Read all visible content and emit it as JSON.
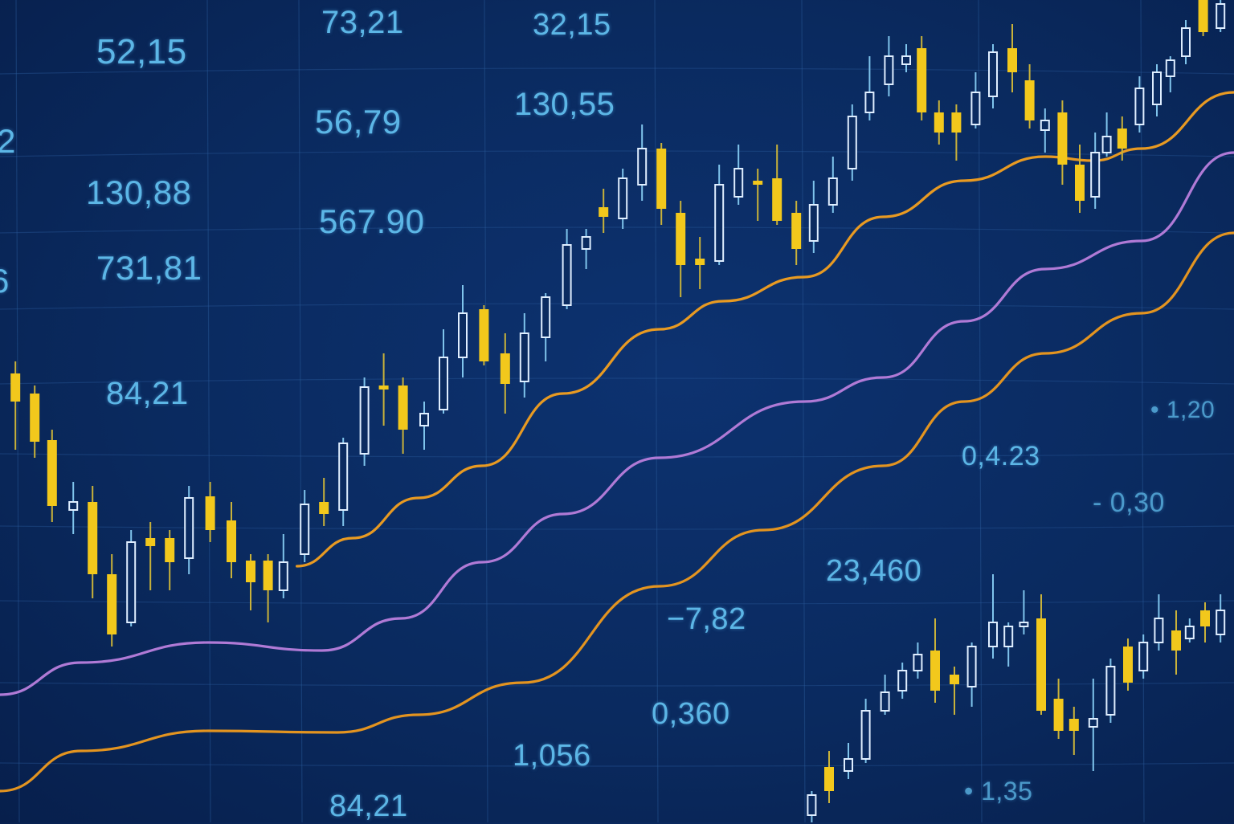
{
  "chart_data": {
    "type": "candlestick",
    "title": "",
    "xlabel": "",
    "ylabel": "",
    "xlim": [
      0,
      64
    ],
    "ylim": [
      0,
      102.4
    ],
    "grid": true,
    "colors": {
      "background": "#0a2a5f",
      "grid": "#2a5a9a",
      "up_candle": "#dfeeff",
      "down_candle": "#f2c81c",
      "ma_fast": "#e89a22",
      "ma_mid": "#b07ad6",
      "ma_slow": "#e39420",
      "label_text": "#5cb6e6"
    },
    "candle_format": [
      "t",
      "open",
      "high",
      "low",
      "close"
    ],
    "series": [
      {
        "kind": "candles",
        "candles": [
          [
            0.8,
            55.9,
            57.4,
            46.4,
            52.4
          ],
          [
            1.8,
            53.4,
            54.4,
            45.4,
            47.4
          ],
          [
            2.7,
            47.6,
            48.9,
            37.4,
            39.4
          ],
          [
            3.8,
            38.9,
            42.4,
            35.9,
            39.9
          ],
          [
            4.8,
            39.9,
            41.9,
            27.9,
            30.9
          ],
          [
            5.8,
            30.9,
            33.4,
            21.9,
            23.4
          ],
          [
            6.8,
            24.9,
            36.4,
            24.4,
            34.9
          ],
          [
            7.8,
            35.4,
            37.4,
            28.9,
            34.4
          ],
          [
            8.8,
            35.4,
            36.4,
            28.9,
            32.4
          ],
          [
            9.8,
            32.9,
            41.9,
            30.9,
            40.4
          ],
          [
            10.9,
            40.6,
            42.4,
            34.9,
            36.4
          ],
          [
            12.0,
            37.6,
            39.9,
            30.4,
            32.4
          ],
          [
            13.0,
            32.6,
            33.4,
            26.4,
            29.9
          ],
          [
            13.9,
            32.6,
            33.4,
            24.9,
            28.9
          ],
          [
            14.7,
            28.9,
            35.9,
            27.9,
            32.4
          ],
          [
            15.8,
            33.4,
            41.4,
            32.4,
            39.6
          ],
          [
            16.8,
            39.9,
            42.9,
            36.9,
            38.4
          ],
          [
            17.8,
            38.9,
            47.9,
            36.9,
            47.2
          ],
          [
            18.9,
            45.9,
            55.4,
            44.4,
            54.2
          ],
          [
            19.9,
            54.4,
            58.4,
            49.4,
            53.9
          ],
          [
            20.9,
            54.4,
            55.4,
            45.9,
            48.9
          ],
          [
            22.0,
            49.4,
            52.4,
            46.4,
            50.9
          ],
          [
            23.0,
            51.4,
            61.4,
            50.9,
            57.9
          ],
          [
            24.0,
            57.9,
            66.9,
            55.4,
            63.4
          ],
          [
            25.1,
            63.9,
            64.4,
            56.9,
            57.4
          ],
          [
            26.2,
            58.4,
            60.9,
            50.9,
            54.6
          ],
          [
            27.2,
            54.9,
            63.4,
            52.9,
            60.9
          ],
          [
            28.3,
            60.4,
            65.9,
            57.4,
            65.4
          ],
          [
            29.4,
            64.4,
            73.9,
            63.9,
            71.9
          ],
          [
            30.4,
            71.4,
            73.9,
            68.9,
            72.9
          ],
          [
            31.3,
            76.6,
            78.9,
            73.4,
            75.4
          ],
          [
            32.3,
            75.2,
            81.4,
            73.9,
            80.2
          ],
          [
            33.3,
            79.4,
            86.9,
            77.4,
            83.9
          ],
          [
            34.3,
            83.9,
            84.6,
            74.4,
            76.4
          ],
          [
            35.3,
            75.9,
            77.4,
            65.4,
            69.4
          ],
          [
            36.3,
            70.2,
            72.9,
            66.4,
            69.4
          ],
          [
            37.3,
            69.9,
            81.9,
            69.4,
            79.4
          ],
          [
            38.3,
            77.9,
            84.4,
            76.9,
            81.4
          ],
          [
            39.3,
            79.9,
            81.4,
            74.9,
            79.4
          ],
          [
            40.3,
            80.2,
            84.4,
            74.4,
            74.9
          ],
          [
            41.3,
            75.9,
            77.4,
            69.4,
            71.4
          ],
          [
            42.2,
            72.4,
            79.9,
            70.9,
            76.9
          ],
          [
            43.2,
            76.9,
            82.9,
            75.9,
            80.2
          ],
          [
            44.2,
            81.4,
            89.4,
            79.9,
            87.9
          ],
          [
            45.1,
            88.4,
            95.4,
            87.4,
            90.9
          ],
          [
            46.1,
            91.9,
            97.9,
            90.4,
            95.4
          ],
          [
            47.0,
            94.4,
            96.9,
            93.4,
            95.4
          ],
          [
            47.8,
            96.4,
            97.9,
            87.4,
            88.4
          ],
          [
            48.7,
            88.4,
            89.9,
            84.4,
            85.9
          ],
          [
            49.6,
            88.4,
            89.4,
            82.4,
            85.9
          ],
          [
            50.6,
            86.9,
            93.4,
            86.4,
            90.9
          ],
          [
            51.5,
            90.4,
            96.9,
            88.9,
            95.9
          ],
          [
            52.5,
            96.4,
            99.4,
            90.9,
            93.4
          ],
          [
            53.4,
            92.4,
            94.4,
            86.4,
            87.4
          ],
          [
            54.2,
            86.2,
            88.9,
            83.4,
            87.4
          ],
          [
            55.1,
            88.4,
            89.9,
            79.4,
            81.9
          ],
          [
            56.0,
            81.9,
            84.4,
            75.9,
            77.4
          ],
          [
            56.8,
            77.9,
            85.9,
            76.4,
            83.4
          ],
          [
            57.4,
            83.4,
            88.4,
            82.9,
            85.4
          ],
          [
            58.2,
            86.4,
            87.9,
            82.4,
            83.9
          ],
          [
            59.1,
            86.9,
            92.9,
            85.9,
            91.4
          ],
          [
            60.0,
            89.4,
            94.4,
            87.9,
            93.4
          ],
          [
            60.7,
            92.9,
            95.4,
            90.9,
            94.9
          ],
          [
            61.5,
            95.4,
            99.9,
            94.4,
            98.9
          ],
          [
            62.4,
            102.4,
            102.4,
            97.9,
            98.4
          ],
          [
            63.3,
            98.9,
            102.4,
            98.4,
            101.9
          ]
        ]
      },
      {
        "kind": "candles",
        "candles": [
          [
            42.1,
            0.9,
            3.9,
            0,
            3.4
          ],
          [
            43.0,
            6.9,
            8.9,
            2.4,
            3.9
          ],
          [
            44.0,
            6.4,
            9.9,
            5.4,
            7.9
          ],
          [
            44.9,
            7.9,
            15.4,
            7.4,
            13.9
          ],
          [
            45.9,
            13.9,
            18.4,
            13.4,
            16.2
          ],
          [
            46.8,
            16.4,
            19.9,
            15.4,
            18.9
          ],
          [
            47.6,
            18.9,
            22.4,
            17.9,
            20.9
          ],
          [
            48.5,
            21.4,
            25.4,
            14.9,
            16.4
          ],
          [
            49.5,
            18.4,
            19.4,
            13.4,
            17.2
          ],
          [
            50.4,
            16.9,
            22.4,
            14.4,
            21.9
          ],
          [
            51.5,
            21.9,
            30.9,
            20.4,
            24.9
          ],
          [
            52.3,
            21.9,
            24.9,
            19.4,
            24.4
          ],
          [
            53.1,
            24.4,
            28.9,
            23.4,
            24.9
          ],
          [
            54.0,
            25.4,
            28.4,
            13.4,
            13.9
          ],
          [
            54.9,
            15.4,
            17.9,
            10.4,
            11.4
          ],
          [
            55.7,
            12.9,
            14.4,
            8.4,
            11.4
          ],
          [
            56.7,
            11.9,
            17.9,
            6.4,
            12.9
          ],
          [
            57.6,
            13.4,
            20.4,
            12.4,
            19.4
          ],
          [
            58.5,
            21.9,
            22.9,
            16.4,
            17.4
          ],
          [
            59.3,
            18.9,
            23.4,
            17.9,
            22.4
          ],
          [
            60.1,
            22.4,
            28.4,
            21.4,
            25.4
          ],
          [
            61.0,
            23.9,
            26.4,
            18.4,
            21.4
          ],
          [
            61.7,
            22.9,
            25.4,
            22.4,
            24.4
          ],
          [
            62.5,
            26.4,
            27.4,
            22.4,
            24.4
          ],
          [
            63.3,
            23.4,
            28.4,
            22.4,
            26.4
          ]
        ]
      },
      {
        "kind": "line",
        "color": "#e89a22",
        "points": [
          [
            15.4,
            31.9
          ],
          [
            18.3,
            35.4
          ],
          [
            21.7,
            40.4
          ],
          [
            25.0,
            44.4
          ],
          [
            29.2,
            53.4
          ],
          [
            34.2,
            61.4
          ],
          [
            37.5,
            64.9
          ],
          [
            41.7,
            67.9
          ],
          [
            45.8,
            75.4
          ],
          [
            50.0,
            79.9
          ],
          [
            54.2,
            82.9
          ],
          [
            56.7,
            82.4
          ],
          [
            59.2,
            83.9
          ],
          [
            64.0,
            90.9
          ]
        ]
      },
      {
        "kind": "line",
        "color": "#b07ad6",
        "points": [
          [
            0,
            15.9
          ],
          [
            4.2,
            19.9
          ],
          [
            10.8,
            22.4
          ],
          [
            16.7,
            21.4
          ],
          [
            20.8,
            25.4
          ],
          [
            25.0,
            32.4
          ],
          [
            29.2,
            38.4
          ],
          [
            34.2,
            45.4
          ],
          [
            41.7,
            52.4
          ],
          [
            45.8,
            55.4
          ],
          [
            50.0,
            62.4
          ],
          [
            54.2,
            68.9
          ],
          [
            59.2,
            72.4
          ],
          [
            64.0,
            83.4
          ]
        ]
      },
      {
        "kind": "line",
        "color": "#e39420",
        "points": [
          [
            0,
            3.9
          ],
          [
            4.2,
            8.9
          ],
          [
            10.8,
            11.4
          ],
          [
            17.5,
            11.2
          ],
          [
            21.7,
            13.4
          ],
          [
            27.1,
            17.4
          ],
          [
            34.2,
            29.4
          ],
          [
            39.6,
            36.4
          ],
          [
            45.8,
            44.4
          ],
          [
            50.0,
            52.4
          ],
          [
            54.2,
            58.4
          ],
          [
            59.2,
            63.4
          ],
          [
            64.0,
            73.4
          ]
        ]
      }
    ],
    "annotations": [
      "52,15",
      "73,21",
      "32,15",
      "2",
      "56,79",
      "130,55",
      "130,88",
      "567.90",
      "6",
      "731,81",
      "84,21",
      "• 1,20",
      "0,4.23",
      "- 0,30",
      "23,460",
      "−7,82",
      "0,360",
      "1,056",
      "• 1,35",
      "84,21"
    ]
  }
}
